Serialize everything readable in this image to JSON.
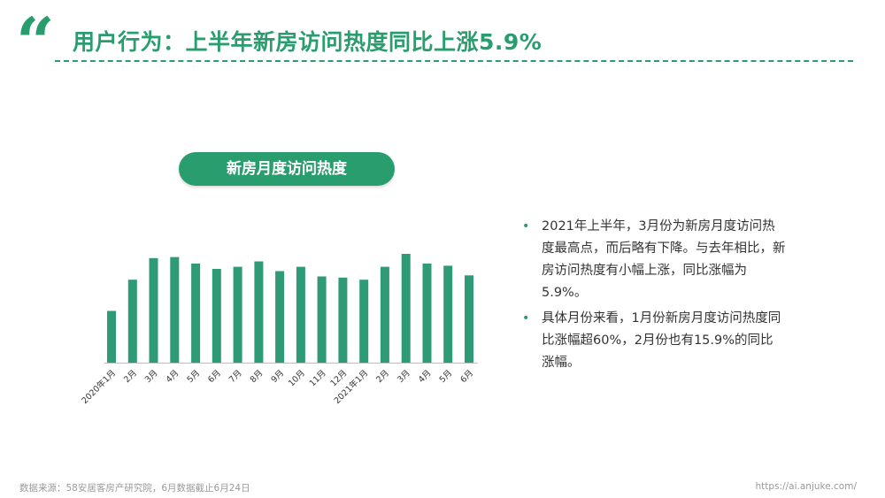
{
  "header": {
    "quote_mark": "“",
    "title": "用户行为：上半年新房访问热度同比上涨5.9%"
  },
  "chart_data": {
    "type": "bar",
    "title": "新房月度访问热度",
    "categories": [
      "2020年1月",
      "2月",
      "3月",
      "4月",
      "5月",
      "6月",
      "7月",
      "8月",
      "9月",
      "10月",
      "11月",
      "12月",
      "2021年1月",
      "2月",
      "3月",
      "4月",
      "5月",
      "6月"
    ],
    "values": [
      48,
      77,
      97,
      98,
      92,
      87,
      89,
      94,
      85,
      89,
      80,
      79,
      77,
      89,
      101,
      92,
      90,
      81
    ],
    "ylim": [
      0,
      110
    ],
    "grid": false,
    "legend": "none",
    "bar_color": "#2e9b76",
    "xlabel": "",
    "ylabel": ""
  },
  "bullets": [
    {
      "text": "2021年上半年，3月份为新房月度访问热度最高点，而后略有下降。与去年相比，新房访问热度有小幅上涨，同比涨幅为5.9%。"
    },
    {
      "text": "具体月份来看，1月份新房月度访问热度同比涨幅超60%，2月份也有15.9%的同比涨幅。"
    }
  ],
  "footer": {
    "source": "数据来源：58安居客房产研究院，6月数据截止6月24日",
    "url": "https://ai.anjuke.com/"
  },
  "colors": {
    "accent": "#2a9d6f",
    "bar": "#2e9b76",
    "footer_text": "#9a9a9a"
  }
}
